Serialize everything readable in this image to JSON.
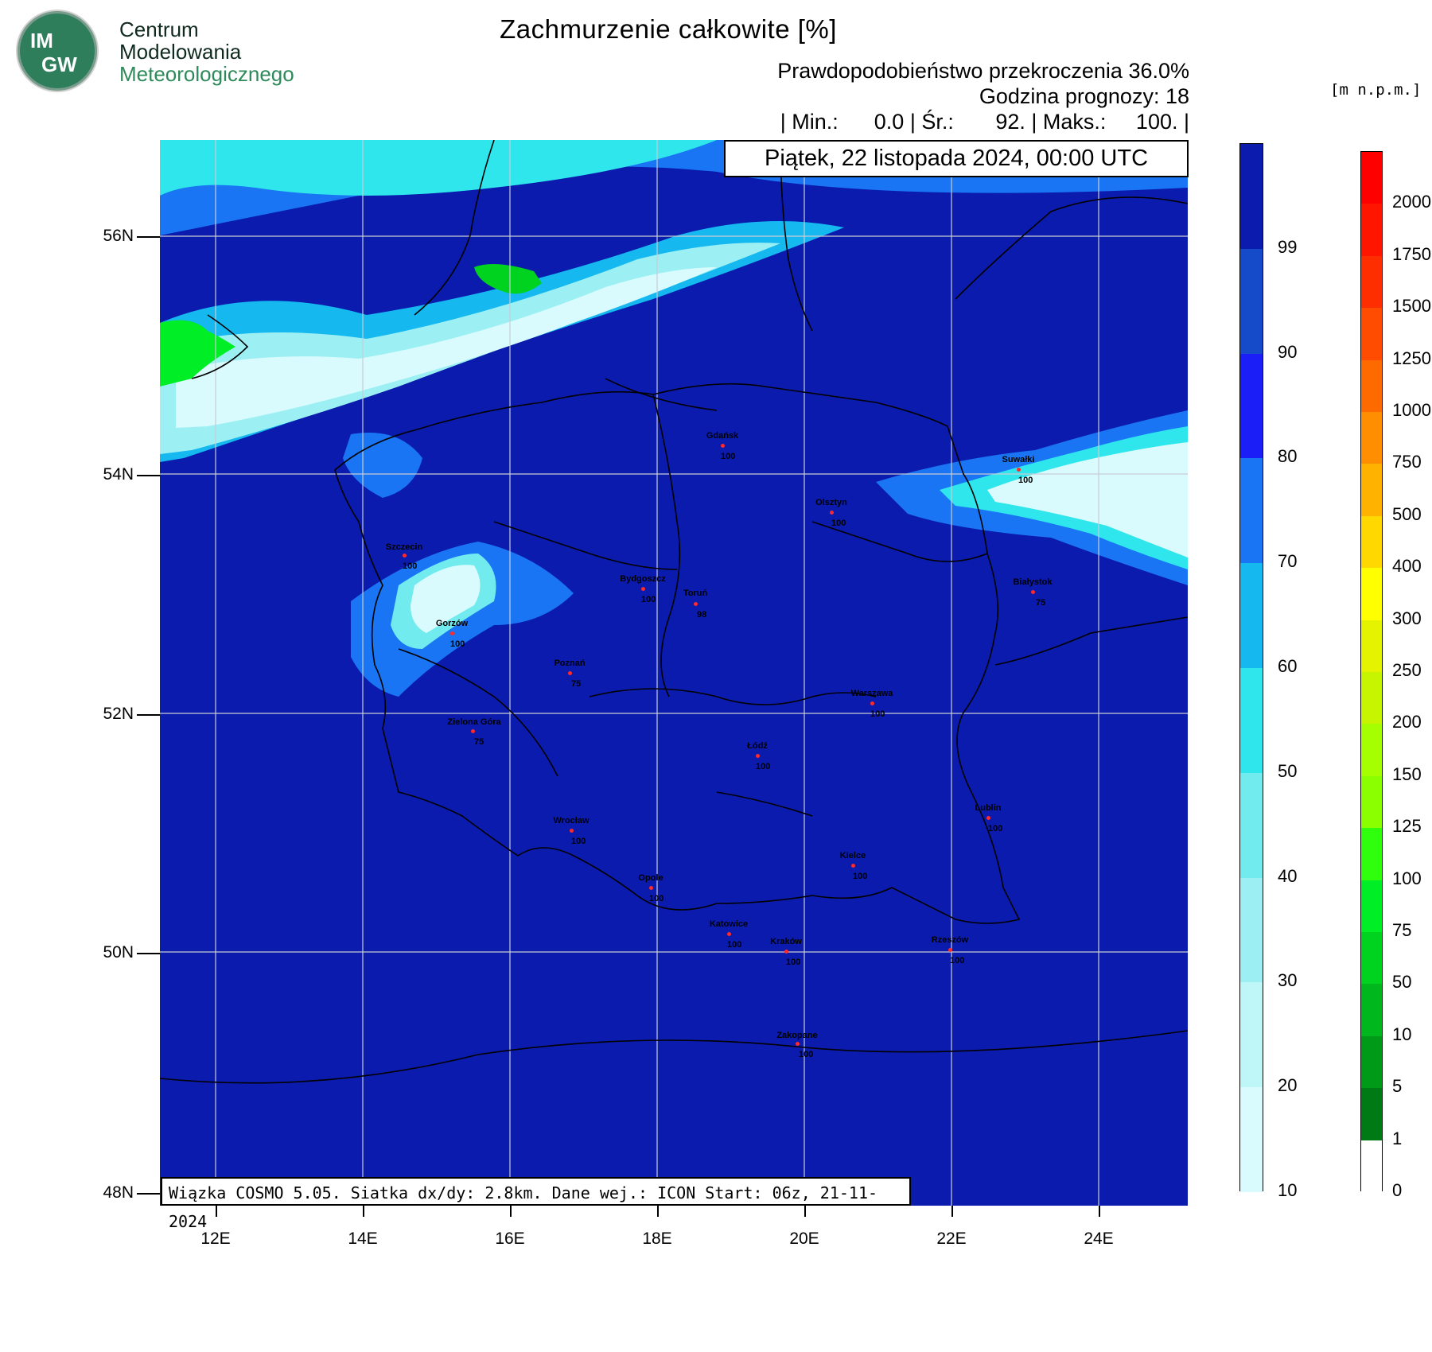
{
  "logo": {
    "seal_top": "IM",
    "seal_bottom": "GW",
    "line1": "Centrum",
    "line2": "Modelowania",
    "line3": "Meteorologicznego"
  },
  "title": "Zachmurzenie całkowite [%]",
  "header": {
    "probability": "Prawdopodobieństwo przekroczenia 36.0%",
    "forecast_hour": "Godzina prognozy: 18",
    "stats": "| Min.:      0.0 | Śr.:       92. | Maks.:     100. |"
  },
  "date": "Piątek, 22 listopada 2024, 00:00 UTC",
  "footer": "Wiązka COSMO 5.05. Siatka dx/dy: 2.8km. Dane wej.: ICON Start: 06z, 21-11-2024",
  "units": "[m n.p.m.]",
  "lat_labels": [
    "56N",
    "54N",
    "52N",
    "50N",
    "48N"
  ],
  "lon_labels": [
    "12E",
    "14E",
    "16E",
    "18E",
    "20E",
    "22E",
    "24E"
  ],
  "cloud_colorbar": {
    "labels": [
      "10",
      "20",
      "30",
      "40",
      "50",
      "60",
      "70",
      "80",
      "90",
      "99"
    ],
    "colors": [
      "#d9fbfd",
      "#bff6f8",
      "#9cf0f4",
      "#72ebef",
      "#2ee6ec",
      "#15b8ef",
      "#1975f3",
      "#1c1ef7",
      "#154bc8",
      "#0a1bad"
    ]
  },
  "terrain_colorbar": {
    "labels": [
      "0",
      "1",
      "5",
      "10",
      "50",
      "75",
      "100",
      "125",
      "150",
      "200",
      "250",
      "300",
      "400",
      "500",
      "750",
      "1000",
      "1250",
      "1500",
      "1750",
      "2000"
    ],
    "colors": [
      "#ffffff",
      "#007a14",
      "#009a18",
      "#00b71d",
      "#00d31f",
      "#00ee26",
      "#2fff0c",
      "#8bff00",
      "#a6ff00",
      "#c7f500",
      "#e6f300",
      "#ffff00",
      "#ffd800",
      "#ffb300",
      "#ff8f00",
      "#ff6a00",
      "#ff4c00",
      "#ff2e00",
      "#ff1500",
      "#ff0000"
    ]
  },
  "cities": [
    {
      "name": "Gdańsk",
      "value": "100"
    },
    {
      "name": "Suwałki",
      "value": "100"
    },
    {
      "name": "Olsztyn",
      "value": "100"
    },
    {
      "name": "Szczecin",
      "value": "100"
    },
    {
      "name": "Bydgoszcz",
      "value": "100"
    },
    {
      "name": "Toruń",
      "value": "98"
    },
    {
      "name": "Białystok",
      "value": "75"
    },
    {
      "name": "Gorzów",
      "value": "100"
    },
    {
      "name": "Poznań",
      "value": "75"
    },
    {
      "name": "Warszawa",
      "value": "100"
    },
    {
      "name": "Zielona Góra",
      "value": "75"
    },
    {
      "name": "Łódź",
      "value": "100"
    },
    {
      "name": "Wrocław",
      "value": "100"
    },
    {
      "name": "Lublin",
      "value": "100"
    },
    {
      "name": "Kielce",
      "value": "100"
    },
    {
      "name": "Opole",
      "value": "100"
    },
    {
      "name": "Katowice",
      "value": "100"
    },
    {
      "name": "Kraków",
      "value": "100"
    },
    {
      "name": "Rzeszów",
      "value": "100"
    },
    {
      "name": "Zakopane",
      "value": "100"
    }
  ]
}
